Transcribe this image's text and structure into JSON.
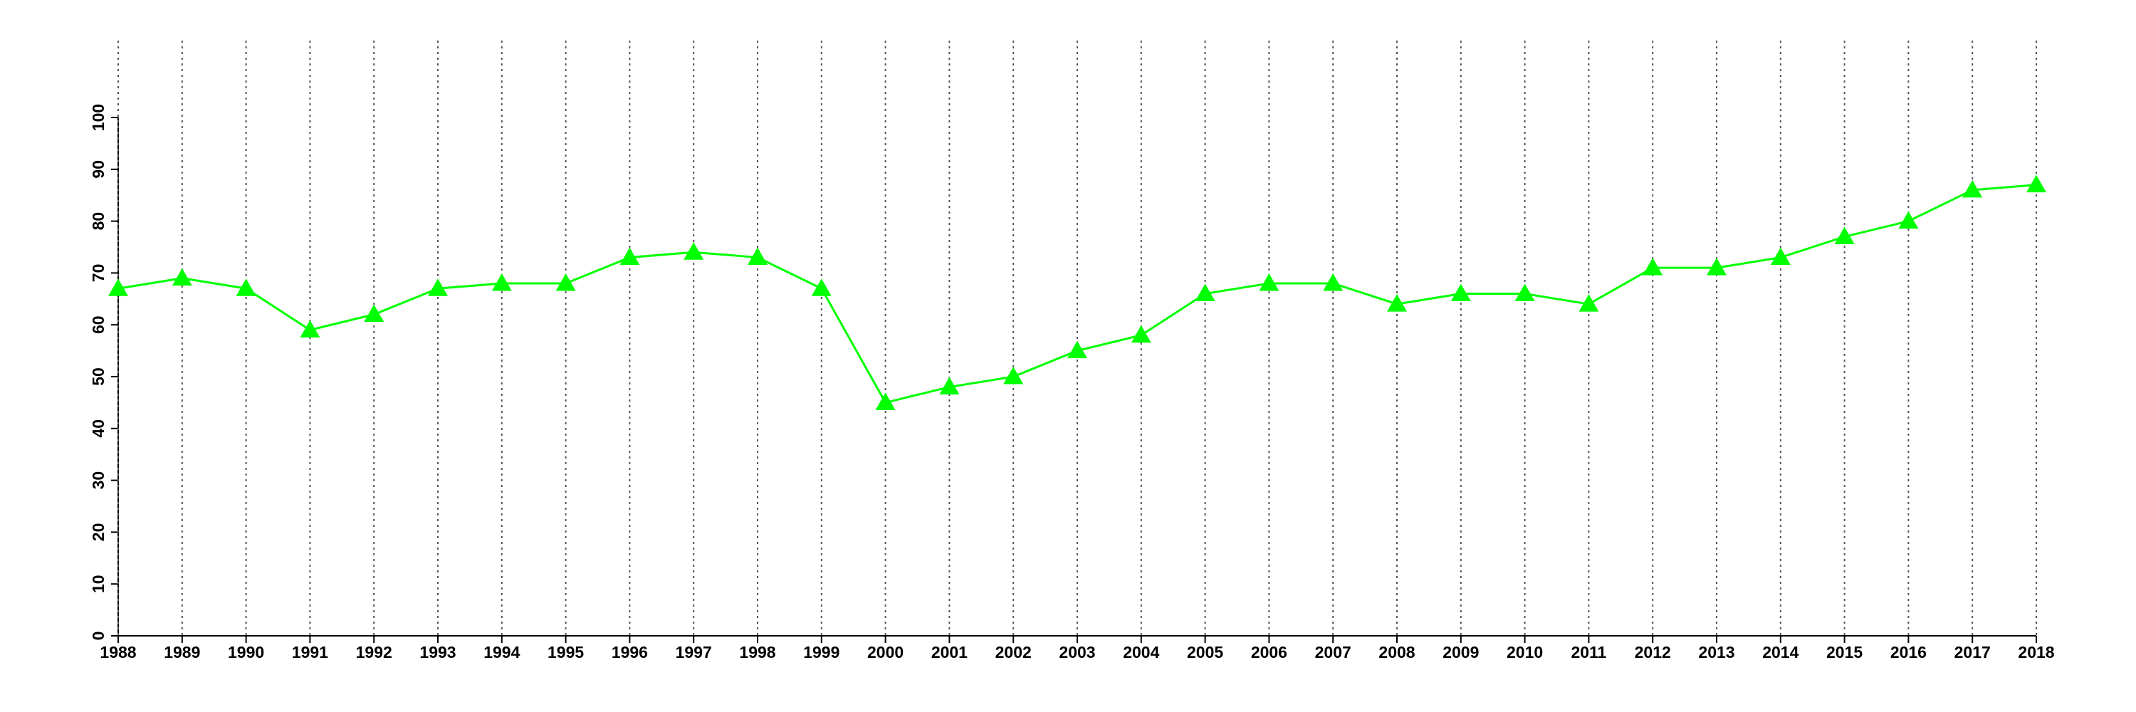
{
  "chart_data": {
    "type": "line",
    "categories": [
      "1988",
      "1989",
      "1990",
      "1991",
      "1992",
      "1993",
      "1994",
      "1995",
      "1996",
      "1997",
      "1998",
      "1999",
      "2000",
      "2001",
      "2002",
      "2003",
      "2004",
      "2005",
      "2006",
      "2007",
      "2008",
      "2009",
      "2010",
      "2011",
      "2012",
      "2013",
      "2014",
      "2015",
      "2016",
      "2017",
      "2018"
    ],
    "series": [
      {
        "color": "#00ff00",
        "marker": "triangle",
        "values": [
          67,
          69,
          67,
          59,
          62,
          67,
          68,
          68,
          73,
          74,
          73,
          67,
          45,
          48,
          50,
          55,
          58,
          66,
          68,
          68,
          64,
          66,
          66,
          64,
          71,
          71,
          73,
          77,
          80,
          86,
          87
        ]
      }
    ],
    "ylim": [
      0,
      100
    ],
    "yticks": [
      0,
      10,
      20,
      30,
      40,
      50,
      60,
      70,
      80,
      90,
      100
    ],
    "grid": "x"
  }
}
